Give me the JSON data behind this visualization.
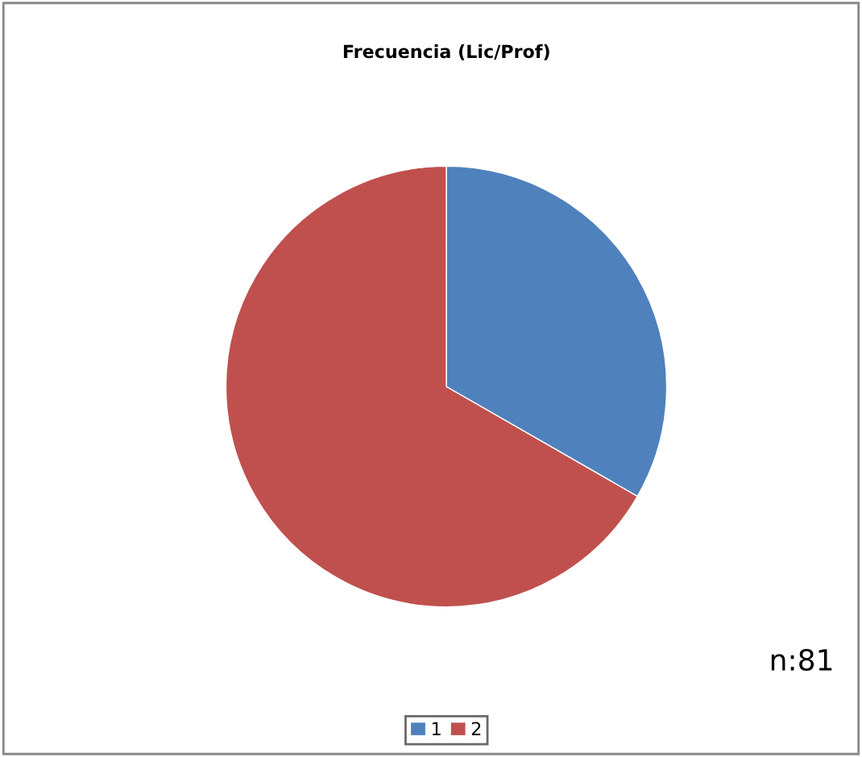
{
  "chart_data": {
    "type": "pie",
    "title": "Frecuencia (Lic/Prof)",
    "categories": [
      "1",
      "2"
    ],
    "values": [
      33.3,
      66.7
    ],
    "colors": [
      "#4f81bd",
      "#c0504d"
    ],
    "legend": "bottom",
    "annotations": [
      "n:81"
    ]
  }
}
